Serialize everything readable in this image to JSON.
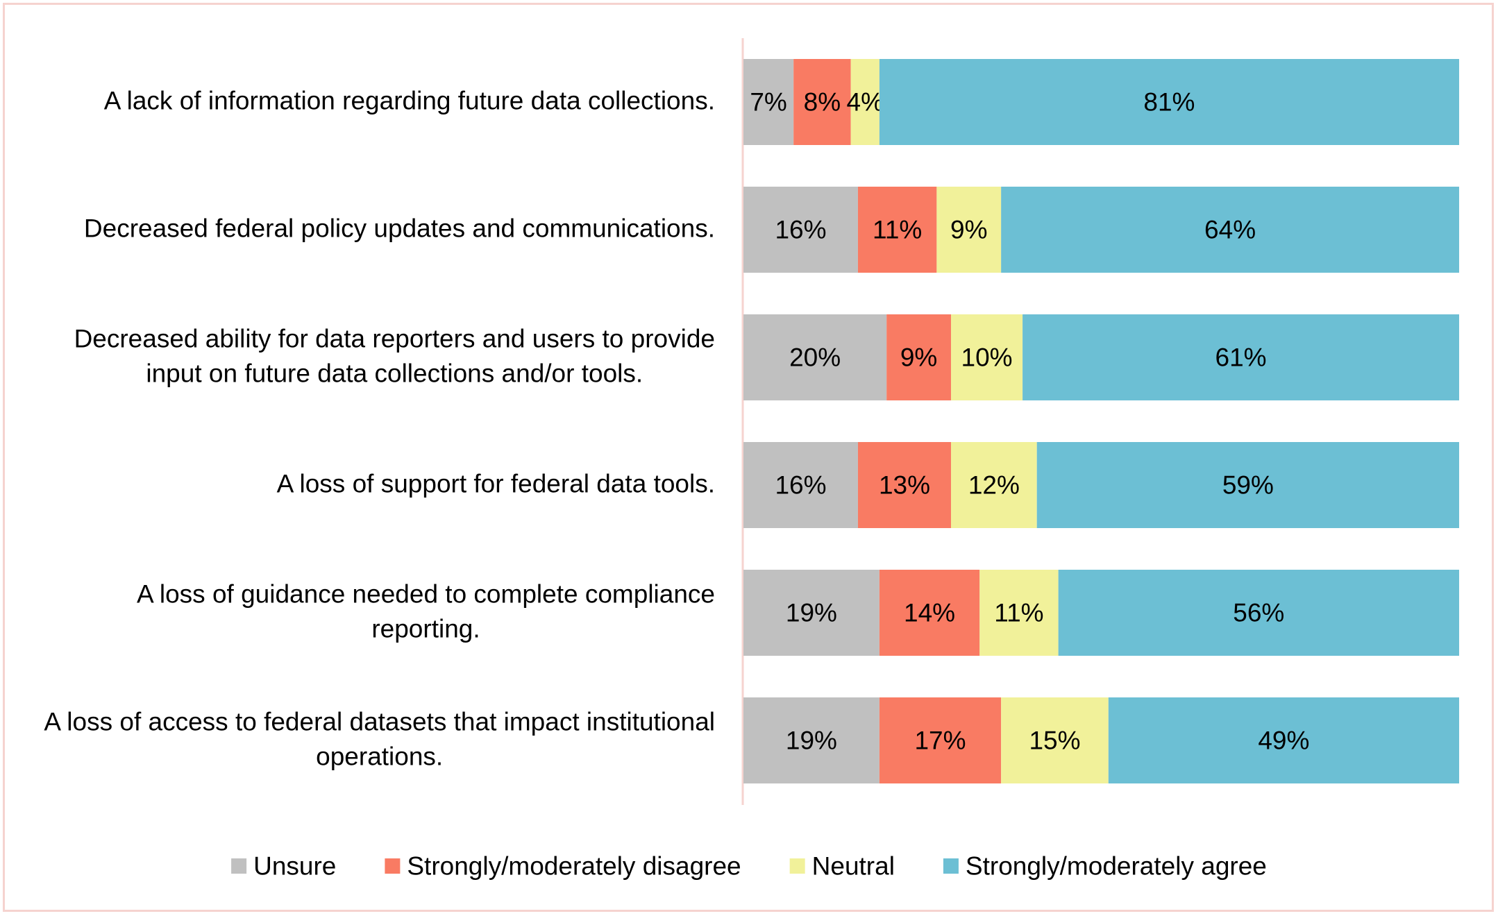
{
  "chart_data": {
    "type": "bar",
    "orientation": "horizontal",
    "stacked": true,
    "title": "",
    "xlabel": "",
    "ylabel": "",
    "xlim": [
      0,
      100
    ],
    "grid": false,
    "legend_position": "bottom",
    "categories": [
      "A lack of information regarding future data collections.",
      "Decreased federal policy updates and communications.",
      "Decreased ability for data reporters and users to provide input on future data collections and/or tools.",
      "A loss of support for federal data tools.",
      "A loss of guidance needed to complete compliance reporting.",
      "A loss of access to federal datasets that impact institutional operations."
    ],
    "category_lines": [
      [
        "A lack of information regarding future data collections."
      ],
      [
        "Decreased federal policy updates and communications."
      ],
      [
        "Decreased ability for data reporters and users to provide",
        "input on future data collections and/or tools."
      ],
      [
        "A loss of support for federal data tools."
      ],
      [
        "A loss of guidance needed to complete compliance",
        "reporting."
      ],
      [
        "A loss of access to federal datasets that impact institutional",
        "operations."
      ]
    ],
    "series": [
      {
        "name": "Unsure",
        "color": "#c0c0c0",
        "values": [
          7,
          16,
          20,
          16,
          19,
          19
        ]
      },
      {
        "name": "Strongly/moderately disagree",
        "color": "#f97b63",
        "values": [
          8,
          11,
          9,
          13,
          14,
          17
        ]
      },
      {
        "name": "Neutral",
        "color": "#f1f19a",
        "values": [
          4,
          9,
          10,
          12,
          11,
          15
        ]
      },
      {
        "name": "Strongly/moderately agree",
        "color": "#6cbfd4",
        "values": [
          81,
          64,
          61,
          59,
          56,
          49
        ]
      }
    ],
    "value_suffix": "%",
    "axis_color": "#f6d3cf"
  }
}
